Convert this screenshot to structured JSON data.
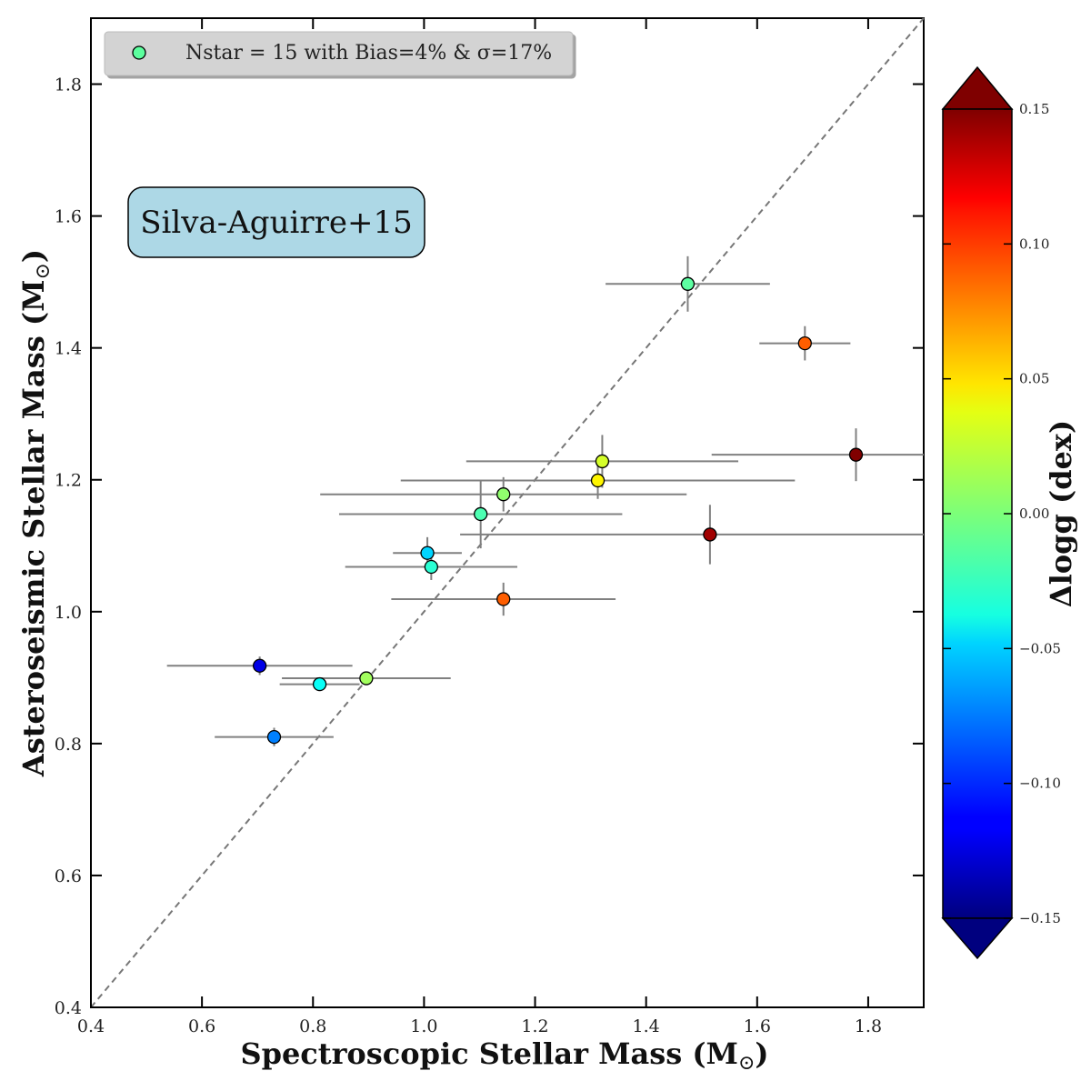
{
  "chart_data": {
    "type": "scatter",
    "xlabel": "Spectroscopic Stellar Mass (M",
    "xlabel_sub": "⊙",
    "xlabel_end": ")",
    "ylabel": "Asteroseismic Stellar Mass (M",
    "ylabel_sub": "⊙",
    "ylabel_end": ")",
    "xlim": [
      0.4,
      1.9
    ],
    "ylim": [
      0.4,
      1.9
    ],
    "x_ticks": [
      0.4,
      0.6,
      0.8,
      1.0,
      1.2,
      1.4,
      1.6,
      1.8
    ],
    "y_ticks": [
      0.4,
      0.6,
      0.8,
      1.0,
      1.2,
      1.4,
      1.6,
      1.8
    ],
    "x_tick_labels": [
      "0.4",
      "0.6",
      "0.8",
      "1.0",
      "1.2",
      "1.4",
      "1.6",
      "1.8"
    ],
    "y_tick_labels": [
      "0.4",
      "0.6",
      "0.8",
      "1.0",
      "1.2",
      "1.4",
      "1.6",
      "1.8"
    ],
    "reference_line": "y = x (dashed)",
    "legend": {
      "text": "Nstar = 15 with Bias=4% & σ=17%",
      "location": "upper-left",
      "marker_color": "#5cff9e"
    },
    "annotation": {
      "text": "Silva-Aguirre+15",
      "background": "#add8e6"
    },
    "colorbar": {
      "label": "Δlogg (dex)",
      "range": [
        -0.15,
        0.15
      ],
      "ticks": [
        0.15,
        0.1,
        0.05,
        0.0,
        -0.05,
        -0.1,
        -0.15
      ],
      "tick_labels": [
        "0.15",
        "0.10",
        "0.05",
        "0.00",
        "−0.05",
        "−0.10",
        "−0.15"
      ],
      "colormap": "jet",
      "extend": "both"
    },
    "points": [
      {
        "x": 1.475,
        "y": 1.497,
        "xerr": 0.148,
        "yerr": 0.042,
        "c": -0.01
      },
      {
        "x": 1.686,
        "y": 1.407,
        "xerr": 0.082,
        "yerr": 0.026,
        "c": 0.085
      },
      {
        "x": 1.778,
        "y": 1.238,
        "xerr": 0.26,
        "yerr": 0.04,
        "c": 0.15
      },
      {
        "x": 1.321,
        "y": 1.228,
        "xerr": 0.245,
        "yerr": 0.04,
        "c": 0.025
      },
      {
        "x": 1.313,
        "y": 1.199,
        "xerr": 0.355,
        "yerr": 0.028,
        "c": 0.04
      },
      {
        "x": 1.143,
        "y": 1.178,
        "xerr": 0.33,
        "yerr": 0.026,
        "c": 0.005
      },
      {
        "x": 1.102,
        "y": 1.148,
        "xerr": 0.255,
        "yerr": 0.052,
        "c": -0.015
      },
      {
        "x": 1.515,
        "y": 1.117,
        "xerr": 0.45,
        "yerr": 0.045,
        "c": 0.14
      },
      {
        "x": 1.006,
        "y": 1.089,
        "xerr": 0.062,
        "yerr": 0.024,
        "c": -0.05
      },
      {
        "x": 1.013,
        "y": 1.068,
        "xerr": 0.155,
        "yerr": 0.02,
        "c": -0.025
      },
      {
        "x": 1.143,
        "y": 1.019,
        "xerr": 0.202,
        "yerr": 0.025,
        "c": 0.085
      },
      {
        "x": 0.704,
        "y": 0.918,
        "xerr": 0.167,
        "yerr": 0.014,
        "c": -0.12
      },
      {
        "x": 0.896,
        "y": 0.899,
        "xerr": 0.152,
        "yerr": 0.01,
        "c": 0.01
      },
      {
        "x": 0.812,
        "y": 0.89,
        "xerr": 0.072,
        "yerr": 0.008,
        "c": -0.035
      },
      {
        "x": 0.73,
        "y": 0.81,
        "xerr": 0.107,
        "yerr": 0.014,
        "c": -0.075
      }
    ]
  }
}
